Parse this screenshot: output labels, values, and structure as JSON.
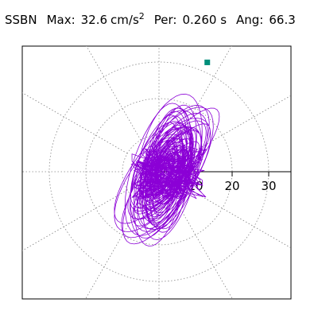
{
  "header": {
    "station": "SSBN",
    "max_label": "Max:",
    "max_value": "32.6",
    "max_unit": "cm/s",
    "max_unit_exp": "2",
    "period_label": "Per:",
    "period_value": "0.260 s",
    "angle_label": "Ang:",
    "angle_value": "66.3"
  },
  "chart_data": {
    "type": "scatter",
    "title": "SSBN   Max: 32.6 cm/s2  Per: 0.260 s  Ang: 66.3",
    "coordinate_system": "polar",
    "radial_tick_labels": [
      "10",
      "20",
      "30"
    ],
    "radial_ticks": [
      10,
      20,
      30
    ],
    "radial_max": 36,
    "angular_grid_deg": 30,
    "grid": true,
    "trace_color": "#8b00d6",
    "marker_color": "#008f7a",
    "major_axis_angle_deg": 66.3,
    "peak_point": {
      "x": 13.2,
      "y": 29.9
    },
    "orbit_envelope": {
      "major_radius": 31.5,
      "minor_radius": 13.0
    },
    "series": [
      {
        "values": []
      }
    ]
  }
}
